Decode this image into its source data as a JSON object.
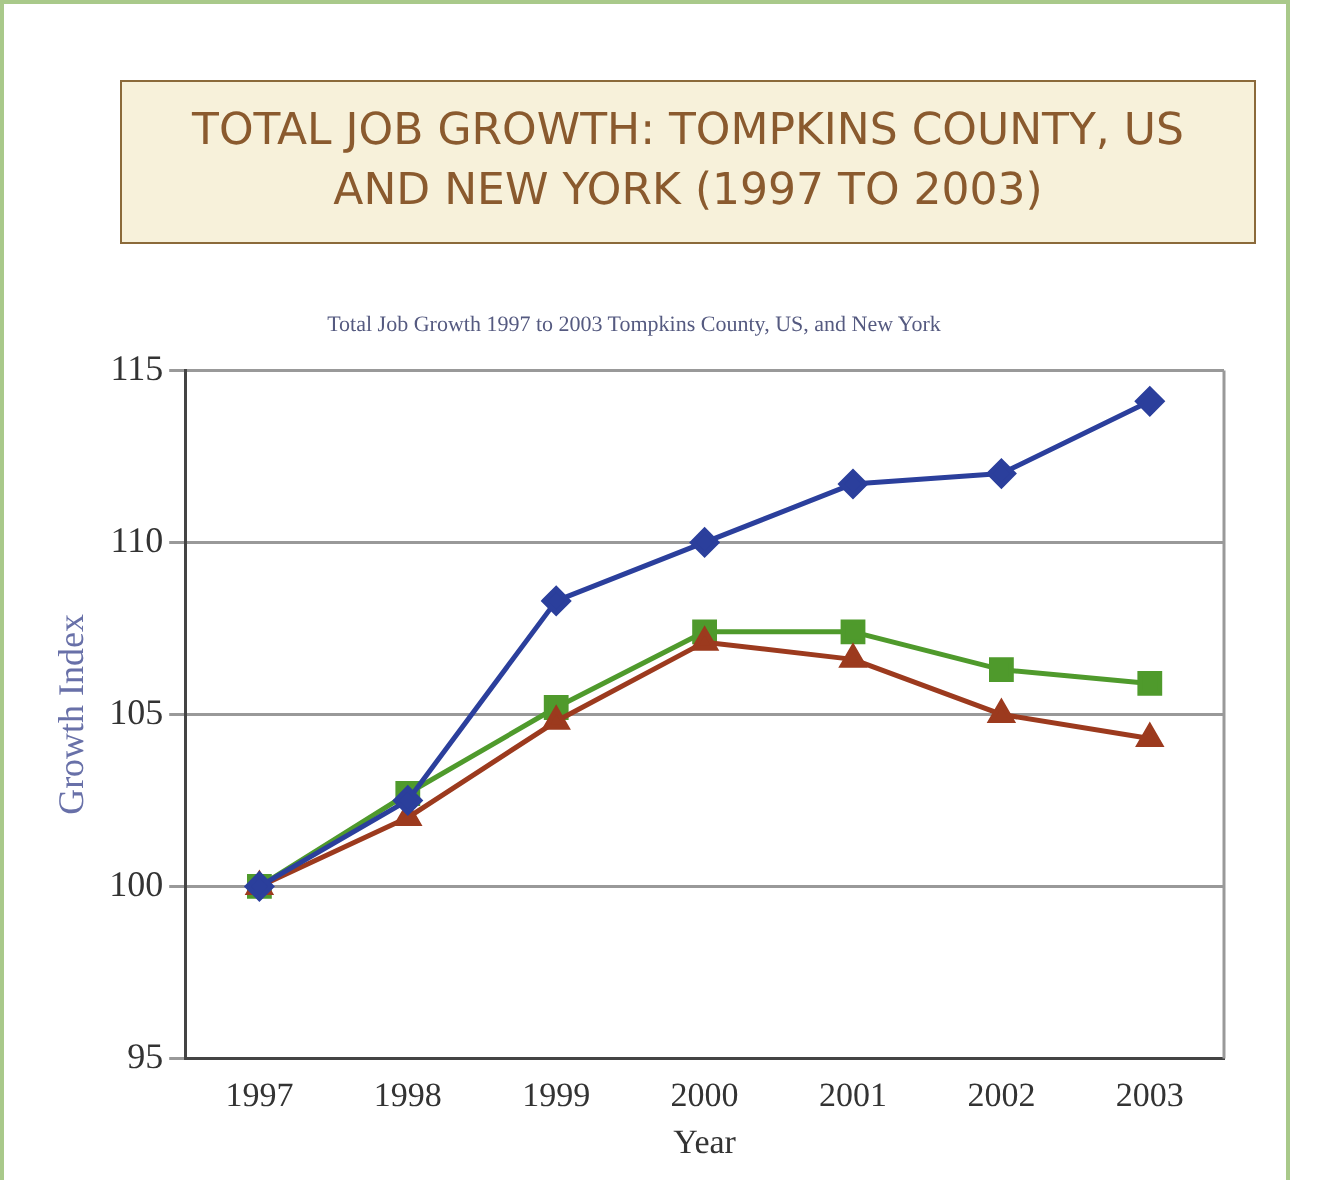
{
  "chart_data": {
    "type": "line",
    "title": "TOTAL JOB GROWTH: TOMPKINS COUNTY, US AND NEW YORK (1997 TO 2003)",
    "subtitle": "Total Job Growth 1997 to 2003 Tompkins County, US, and New York",
    "xlabel": "Year",
    "ylabel": "Growth Index",
    "categories": [
      "1997",
      "1998",
      "1999",
      "2000",
      "2001",
      "2002",
      "2003"
    ],
    "ylim": [
      95,
      115
    ],
    "yticks": [
      95,
      100,
      105,
      110,
      115
    ],
    "grid": "y",
    "legend": false,
    "line_style": "solid",
    "series": [
      {
        "color": "#2b3f9c",
        "marker": "diamond",
        "values": [
          100,
          102.5,
          108.3,
          110,
          111.7,
          112,
          114.1
        ]
      },
      {
        "color": "#9c3a1e",
        "marker": "triangle",
        "values": [
          100,
          102,
          104.8,
          107.1,
          106.6,
          105,
          104.3
        ]
      },
      {
        "color": "#4f9a2c",
        "marker": "square",
        "values": [
          100,
          102.7,
          105.2,
          107.4,
          107.4,
          106.3,
          105.9
        ]
      }
    ]
  }
}
